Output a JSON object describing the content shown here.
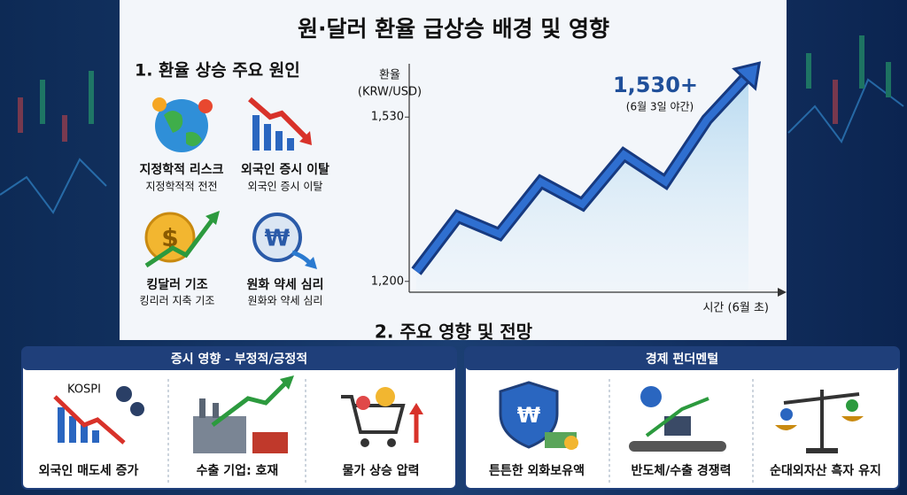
{
  "title": "원·달러 환율 급상승 배경 및 영향",
  "causes": {
    "heading": "1. 환율 상승 주요 원인",
    "items": [
      {
        "label": "지정학적 리스크",
        "sub": "지정학적적 전전"
      },
      {
        "label": "외국인 증시 이탈",
        "sub": "외국인 증시 이탈"
      },
      {
        "label": "킹달러 기조",
        "sub": "킹리러 지축 기조"
      },
      {
        "label": "원화 약세 심리",
        "sub": "원화와 약세 심리"
      }
    ]
  },
  "chart_data": {
    "type": "line",
    "ylabel": "환율",
    "ylabel_unit": "(KRW/USD)",
    "xlabel": "시간 (6월 초)",
    "annotation": "1,530+",
    "annotation_note": "(6월 3일 야간)",
    "categories": [
      null,
      null,
      null,
      null,
      null,
      null,
      null,
      null,
      null
    ],
    "values": [
      1220,
      1330,
      1295,
      1400,
      1355,
      1455,
      1400,
      1525,
      1615
    ],
    "color": "#2f6fd0",
    "ylim": [
      1180,
      1630
    ],
    "yticks": [
      {
        "value": 1200,
        "label": "1,200"
      },
      {
        "value": 1530,
        "label": "1,530"
      }
    ]
  },
  "impacts": {
    "heading": "2. 주요 영향 및 전망",
    "icon_text": "KOSPI",
    "panels": [
      {
        "title": "증시 영향 - 부정적/긍정적",
        "items": [
          "외국인 매도세 증가",
          "수출 기업: 호재",
          "물가 상승 압력"
        ]
      },
      {
        "title": "경제 펀더멘털",
        "items": [
          "튼튼한 외화보유액",
          "반도체/수출 경쟁력",
          "순대외자산 흑자 유지"
        ]
      }
    ]
  }
}
